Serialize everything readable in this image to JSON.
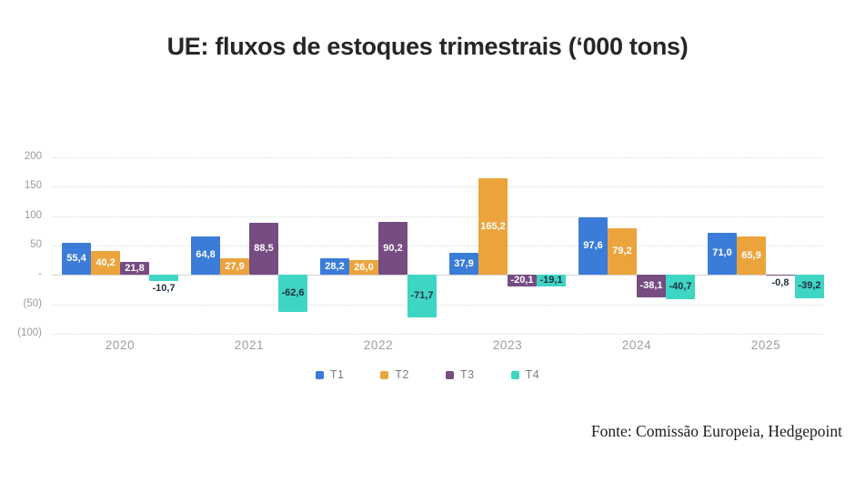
{
  "title": "UE: fluxos de estoques trimestrais (‘000 tons)",
  "source": "Fonte: Comissão Europeia, Hedgepoint",
  "colors": {
    "t1": "#3B7CD9",
    "t2": "#EBA43C",
    "t3": "#764C82",
    "t4": "#3FD5C4",
    "label_light": "#FFFFFF",
    "label_dark": "#233140",
    "axis_text": "#9B9B9B",
    "grid": "#DCDCDC",
    "zero_line": "#D2D2D2",
    "title_text": "#262626",
    "legend_text": "#7E7E7E"
  },
  "chart_data": {
    "type": "bar",
    "title": "UE: fluxos de estoques trimestrais (‘000 tons)",
    "xlabel": "",
    "ylabel": "",
    "ylim": [
      -100,
      200
    ],
    "grid": true,
    "legend_position": "bottom",
    "categories": [
      "2020",
      "2021",
      "2022",
      "2023",
      "2024",
      "2025"
    ],
    "series": [
      {
        "name": "T1",
        "values": [
          55.4,
          64.8,
          28.2,
          37.9,
          97.6,
          71.0
        ],
        "labels": [
          "55,4",
          "64,8",
          "28,2",
          "37,9",
          "97,6",
          "71,0"
        ]
      },
      {
        "name": "T2",
        "values": [
          40.2,
          27.9,
          26.0,
          165.2,
          79.2,
          65.9
        ],
        "labels": [
          "40,2",
          "27,9",
          "26,0",
          "165,2",
          "79,2",
          "65,9"
        ]
      },
      {
        "name": "T3",
        "values": [
          21.8,
          88.5,
          90.2,
          -20.1,
          -38.1,
          -0.8
        ],
        "labels": [
          "21,8",
          "88,5",
          "90,2",
          "-20,1",
          "-38,1",
          "-0,8"
        ]
      },
      {
        "name": "T4",
        "values": [
          -10.7,
          -62.6,
          -71.7,
          -19.1,
          -40.7,
          -39.2
        ],
        "labels": [
          "-10,7",
          "-62,6",
          "-71,7",
          "-19,1",
          "-40,7",
          "-39,2"
        ]
      }
    ],
    "y_ticks": [
      {
        "value": 200,
        "label": "200"
      },
      {
        "value": 150,
        "label": "150"
      },
      {
        "value": 100,
        "label": "100"
      },
      {
        "value": 50,
        "label": "50"
      },
      {
        "value": 0,
        "label": "-"
      },
      {
        "value": -50,
        "label": "(50)"
      },
      {
        "value": -100,
        "label": "(100)"
      }
    ],
    "legend": [
      "T1",
      "T2",
      "T3",
      "T4"
    ]
  }
}
